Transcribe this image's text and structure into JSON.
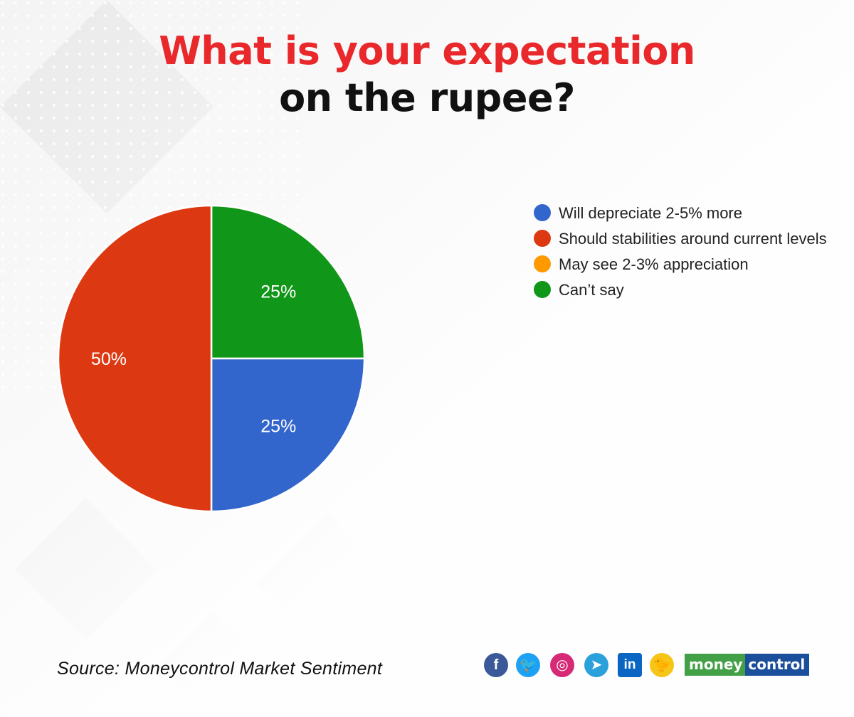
{
  "title": {
    "line1": "What is your expectation",
    "line2": "on the rupee?"
  },
  "chart_data": {
    "type": "pie",
    "slices": [
      {
        "label": "Will depreciate 2-5% more",
        "value": 25,
        "display": "25%",
        "color": "#3366cc"
      },
      {
        "label": "Should stabilities around current levels",
        "value": 50,
        "display": "50%",
        "color": "#dc3912"
      },
      {
        "label": "May see 2-3% appreciation",
        "value": 0,
        "display": "",
        "color": "#ff9900"
      },
      {
        "label": "Can’t say",
        "value": 25,
        "display": "25%",
        "color": "#109618"
      }
    ],
    "legend_position": "right"
  },
  "source": "Source: Moneycontrol Market Sentiment",
  "social": [
    {
      "icon": "facebook-icon",
      "glyph": "f",
      "color": "#3b5998"
    },
    {
      "icon": "twitter-icon",
      "glyph": "🐦",
      "color": "#1da1f2"
    },
    {
      "icon": "instagram-icon",
      "glyph": "◎",
      "color": "#d62976"
    },
    {
      "icon": "telegram-icon",
      "glyph": "➤",
      "color": "#2aa1da"
    },
    {
      "icon": "linkedin-icon",
      "glyph": "in",
      "color": "#0a66c2"
    },
    {
      "icon": "koo-icon",
      "glyph": "🐤",
      "color": "#f5c518"
    }
  ],
  "logo": {
    "part1": "money",
    "part2": "control"
  }
}
